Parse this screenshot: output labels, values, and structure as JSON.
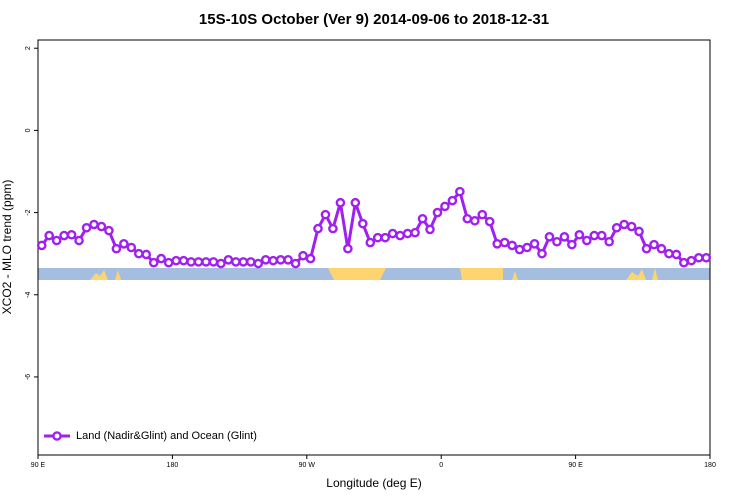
{
  "chart_data": {
    "type": "line",
    "title": "15S-10S October (Ver 9)   2014-09-06 to 2018-12-31",
    "x_label": "Longitude (deg E)",
    "y_label": "XCO2 - MLO trend (ppm)",
    "xlim": [
      90,
      540
    ],
    "ylim": [
      -7.9,
      2.2
    ],
    "xticks": [
      {
        "value": 90,
        "label": "90 E"
      },
      180,
      {
        "value": 270,
        "label": "90 W"
      },
      {
        "value": 360,
        "label": "0"
      },
      {
        "value": 450,
        "label": "90 E"
      },
      {
        "value": 540,
        "label": "180"
      }
    ],
    "yticks": [
      2,
      0,
      -2,
      -4,
      -6
    ],
    "legend_position": "bottom-left",
    "x": [
      92.5,
      97.5,
      102.5,
      107.5,
      112.5,
      117.5,
      122.5,
      127.5,
      132.5,
      137.5,
      142.5,
      147.5,
      152.5,
      157.5,
      162.5,
      167.5,
      172.5,
      177.5,
      182.5,
      187.5,
      192.5,
      197.5,
      202.5,
      207.5,
      212.5,
      217.5,
      222.5,
      227.5,
      232.5,
      237.5,
      242.5,
      247.5,
      252.5,
      257.5,
      262.5,
      267.5,
      272.5,
      277.5,
      282.5,
      287.5,
      292.5,
      297.5,
      302.5,
      307.5,
      312.5,
      317.5,
      322.5,
      327.5,
      332.5,
      337.5,
      342.5,
      347.5,
      352.5,
      357.5,
      362.5,
      367.5,
      372.5,
      377.5,
      382.5,
      387.5,
      392.5,
      397.5,
      402.5,
      407.5,
      412.5,
      417.5,
      422.5,
      427.5,
      432.5,
      437.5,
      442.5,
      447.5,
      452.5,
      457.5,
      462.5,
      467.5,
      472.5,
      477.5,
      482.5,
      487.5,
      492.5,
      497.5,
      502.5,
      507.5,
      512.5,
      517.5,
      522.5,
      527.5,
      532.5,
      537.5
    ],
    "series": [
      {
        "name": "Land (Nadir&Glint) and Ocean (Glint)",
        "color": "#a020f0",
        "values": [
          -2.8,
          -2.56,
          -2.68,
          -2.56,
          -2.54,
          -2.68,
          -2.37,
          -2.29,
          -2.34,
          -2.44,
          -2.88,
          -2.76,
          -2.85,
          -3.0,
          -3.02,
          -3.22,
          -3.12,
          -3.22,
          -3.17,
          -3.17,
          -3.2,
          -3.2,
          -3.2,
          -3.2,
          -3.24,
          -3.15,
          -3.2,
          -3.2,
          -3.2,
          -3.24,
          -3.15,
          -3.17,
          -3.15,
          -3.15,
          -3.24,
          -3.05,
          -3.12,
          -2.39,
          -2.05,
          -2.39,
          -1.76,
          -2.88,
          -1.76,
          -2.27,
          -2.73,
          -2.61,
          -2.61,
          -2.51,
          -2.56,
          -2.51,
          -2.49,
          -2.15,
          -2.41,
          -2.0,
          -1.85,
          -1.71,
          -1.49,
          -2.15,
          -2.2,
          -2.05,
          -2.22,
          -2.76,
          -2.73,
          -2.8,
          -2.9,
          -2.85,
          -2.76,
          -3.0,
          -2.59,
          -2.71,
          -2.59,
          -2.78,
          -2.54,
          -2.68,
          -2.56,
          -2.56,
          -2.71,
          -2.37,
          -2.29,
          -2.34,
          -2.46,
          -2.88,
          -2.78,
          -2.88,
          -3.0,
          -3.02,
          -3.22,
          -3.17,
          -3.1,
          -3.1
        ]
      }
    ]
  }
}
